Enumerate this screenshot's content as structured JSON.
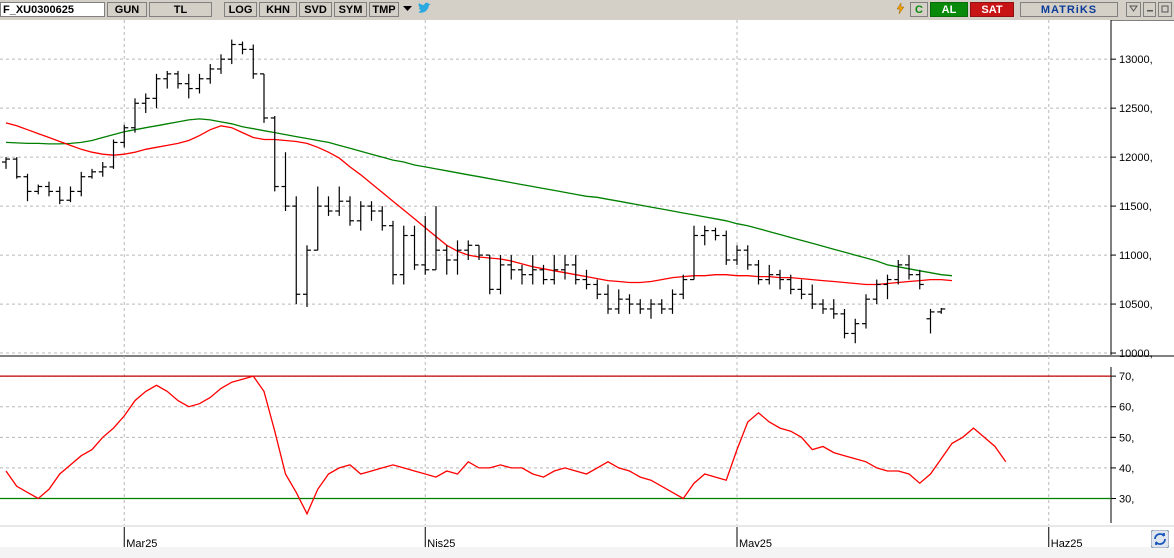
{
  "toolbar": {
    "symbol": "F_XU0300625",
    "period": "GUN",
    "currency": "TL",
    "buttons": [
      "LOG",
      "KHN",
      "SVD",
      "SYM",
      "TMP"
    ],
    "c_label": "C",
    "al_label": "AL",
    "sat_label": "SAT",
    "brand": "MATRiKS",
    "colors": {
      "al": "#0a8a0a",
      "sat": "#c81414",
      "brand": "#0b3c99"
    }
  },
  "icons": [
    "dropdown-arrow-icon",
    "twitter-bird-icon",
    "lightning-icon",
    "minimize-icon",
    "restore-icon",
    "refresh-icon"
  ],
  "chart_data": [
    {
      "type": "ohlc",
      "y_ticks": [
        "13000,",
        "12500,",
        "12000,",
        "11500,",
        "11000,",
        "10500,",
        "10000,"
      ],
      "ylim": [
        9980,
        13400
      ],
      "grid": true,
      "x_labels": [
        {
          "label": "Mar25",
          "index": 11
        },
        {
          "label": "Nis25",
          "index": 39
        },
        {
          "label": "May25",
          "index": 68
        },
        {
          "label": "Haz25",
          "index": 97
        }
      ],
      "bars": [
        [
          11950,
          12000,
          11880,
          11980
        ],
        [
          11980,
          12000,
          11780,
          11800
        ],
        [
          11800,
          11830,
          11550,
          11650
        ],
        [
          11650,
          11720,
          11620,
          11700
        ],
        [
          11700,
          11750,
          11600,
          11650
        ],
        [
          11650,
          11700,
          11520,
          11560
        ],
        [
          11560,
          11700,
          11540,
          11650
        ],
        [
          11650,
          11850,
          11600,
          11800
        ],
        [
          11800,
          11880,
          11780,
          11850
        ],
        [
          11850,
          11950,
          11800,
          11900
        ],
        [
          11900,
          12180,
          11880,
          12150
        ],
        [
          12150,
          12330,
          12100,
          12300
        ],
        [
          12300,
          12600,
          12250,
          12550
        ],
        [
          12550,
          12650,
          12450,
          12600
        ],
        [
          12600,
          12850,
          12500,
          12800
        ],
        [
          12800,
          12880,
          12700,
          12850
        ],
        [
          12850,
          12880,
          12700,
          12750
        ],
        [
          12750,
          12850,
          12600,
          12700
        ],
        [
          12700,
          12850,
          12650,
          12800
        ],
        [
          12800,
          12950,
          12750,
          12900
        ],
        [
          12900,
          13050,
          12850,
          13000
        ],
        [
          13000,
          13200,
          12950,
          13150
        ],
        [
          13150,
          13180,
          13050,
          13100
        ],
        [
          13100,
          13150,
          12800,
          12850
        ],
        [
          12850,
          12850,
          12350,
          12400
        ],
        [
          12400,
          12420,
          11650,
          11700
        ],
        [
          11700,
          12050,
          11450,
          11500
        ],
        [
          11500,
          11600,
          10500,
          10600
        ],
        [
          10600,
          11100,
          10470,
          11050
        ],
        [
          11050,
          11700,
          11050,
          11500
        ],
        [
          11500,
          11600,
          11400,
          11450
        ],
        [
          11450,
          11700,
          11400,
          11550
        ],
        [
          11550,
          11600,
          11300,
          11350
        ],
        [
          11350,
          11550,
          11250,
          11500
        ],
        [
          11500,
          11550,
          11350,
          11450
        ],
        [
          11450,
          11500,
          11250,
          11300
        ],
        [
          11300,
          11350,
          10700,
          10800
        ],
        [
          10800,
          11300,
          10700,
          11200
        ],
        [
          11200,
          11300,
          10850,
          10900
        ],
        [
          10900,
          11400,
          10800,
          10850
        ],
        [
          10850,
          11500,
          10850,
          11050
        ],
        [
          11050,
          11100,
          10800,
          10950
        ],
        [
          10950,
          11150,
          10800,
          11050
        ],
        [
          11050,
          11150,
          10950,
          11100
        ],
        [
          11100,
          11100,
          10950,
          11000
        ],
        [
          11000,
          11000,
          10600,
          10650
        ],
        [
          10650,
          11000,
          10600,
          10900
        ],
        [
          10900,
          11000,
          10750,
          10850
        ],
        [
          10850,
          10900,
          10700,
          10800
        ],
        [
          10800,
          11000,
          10700,
          10850
        ],
        [
          10850,
          10900,
          10700,
          10750
        ],
        [
          10750,
          11000,
          10700,
          10850
        ],
        [
          10850,
          11000,
          10750,
          10900
        ],
        [
          10900,
          11000,
          10700,
          10750
        ],
        [
          10750,
          10850,
          10650,
          10700
        ],
        [
          10700,
          10750,
          10550,
          10600
        ],
        [
          10600,
          10700,
          10400,
          10450
        ],
        [
          10450,
          10650,
          10400,
          10550
        ],
        [
          10550,
          10600,
          10400,
          10500
        ],
        [
          10500,
          10550,
          10400,
          10450
        ],
        [
          10450,
          10550,
          10350,
          10500
        ],
        [
          10500,
          10550,
          10400,
          10450
        ],
        [
          10450,
          10650,
          10400,
          10600
        ],
        [
          10600,
          10800,
          10550,
          10750
        ],
        [
          10750,
          11300,
          10750,
          11200
        ],
        [
          11200,
          11300,
          11100,
          11250
        ],
        [
          11250,
          11280,
          11150,
          11200
        ],
        [
          11200,
          11250,
          10900,
          10950
        ],
        [
          10950,
          11100,
          10900,
          11050
        ],
        [
          11050,
          11100,
          10850,
          10900
        ],
        [
          10900,
          10950,
          10700,
          10750
        ],
        [
          10750,
          10900,
          10700,
          10800
        ],
        [
          10800,
          10850,
          10650,
          10750
        ],
        [
          10750,
          10800,
          10600,
          10650
        ],
        [
          10650,
          10750,
          10550,
          10600
        ],
        [
          10600,
          10700,
          10450,
          10500
        ],
        [
          10500,
          10550,
          10400,
          10450
        ],
        [
          10450,
          10550,
          10350,
          10400
        ],
        [
          10400,
          10450,
          10150,
          10200
        ],
        [
          10200,
          10350,
          10100,
          10300
        ],
        [
          10300,
          10600,
          10250,
          10550
        ],
        [
          10550,
          10750,
          10500,
          10700
        ],
        [
          10700,
          10800,
          10550,
          10750
        ],
        [
          10750,
          10950,
          10700,
          10900
        ],
        [
          10900,
          11000,
          10750,
          10800
        ],
        [
          10800,
          10850,
          10650,
          10700
        ],
        [
          10350,
          10450,
          10200,
          10420
        ],
        [
          10420,
          10460,
          10400,
          10450
        ]
      ],
      "series": [
        {
          "name": "",
          "color": "#008000",
          "values": [
            12150,
            12145,
            12140,
            12140,
            12135,
            12135,
            12140,
            12150,
            12170,
            12200,
            12230,
            12260,
            12280,
            12300,
            12320,
            12340,
            12360,
            12380,
            12390,
            12380,
            12360,
            12340,
            12310,
            12290,
            12270,
            12250,
            12230,
            12210,
            12190,
            12170,
            12150,
            12120,
            12090,
            12060,
            12030,
            12000,
            11970,
            11950,
            11920,
            11900,
            11880,
            11860,
            11840,
            11820,
            11800,
            11780,
            11760,
            11740,
            11720,
            11700,
            11680,
            11660,
            11640,
            11620,
            11600,
            11590,
            11570,
            11550,
            11530,
            11510,
            11490,
            11470,
            11450,
            11430,
            11410,
            11390,
            11370,
            11350,
            11320,
            11300,
            11270,
            11240,
            11210,
            11180,
            11150,
            11120,
            11090,
            11060,
            11030,
            11000,
            10970,
            10940,
            10900,
            10880,
            10860,
            10840,
            10820,
            10800,
            10790
          ]
        },
        {
          "name": "",
          "color": "#ff0000",
          "values": [
            12350,
            12320,
            12280,
            12240,
            12200,
            12160,
            12120,
            12080,
            12050,
            12030,
            12020,
            12030,
            12050,
            12080,
            12100,
            12120,
            12140,
            12170,
            12220,
            12280,
            12320,
            12300,
            12250,
            12200,
            12180,
            12180,
            12170,
            12160,
            12140,
            12100,
            12050,
            11990,
            11900,
            11820,
            11730,
            11640,
            11550,
            11460,
            11370,
            11280,
            11190,
            11100,
            11040,
            11000,
            10980,
            10970,
            10960,
            10940,
            10910,
            10880,
            10860,
            10840,
            10820,
            10800,
            10780,
            10760,
            10740,
            10730,
            10720,
            10720,
            10730,
            10750,
            10770,
            10780,
            10790,
            10790,
            10800,
            10800,
            10790,
            10790,
            10780,
            10780,
            10770,
            10770,
            10760,
            10750,
            10740,
            10730,
            10720,
            10710,
            10700,
            10700,
            10710,
            10720,
            10730,
            10740,
            10750,
            10750,
            10740
          ]
        }
      ]
    },
    {
      "type": "line",
      "y_ticks": [
        "70,",
        "60,",
        "50,",
        "40,",
        "30,"
      ],
      "ylim": [
        22,
        72
      ],
      "levels": [
        {
          "value": 70,
          "color": "#c00000"
        },
        {
          "value": 30,
          "color": "#008000"
        }
      ],
      "series": [
        {
          "name": "",
          "color": "#ff0000",
          "values": [
            39,
            34,
            32,
            30,
            33,
            38,
            41,
            44,
            46,
            50,
            53,
            57,
            62,
            65,
            67,
            65,
            62,
            60,
            61,
            63,
            66,
            68,
            69,
            70,
            65,
            52,
            38,
            32,
            25,
            33,
            38,
            40,
            41,
            38,
            39,
            40,
            41,
            40,
            39,
            38,
            37,
            39,
            38,
            42,
            40,
            40,
            41,
            40,
            40,
            38,
            37,
            39,
            40,
            39,
            38,
            40,
            42,
            40,
            39,
            37,
            36,
            34,
            32,
            30,
            35,
            38,
            37,
            36,
            46,
            55,
            58,
            55,
            53,
            52,
            50,
            46,
            47,
            45,
            44,
            43,
            42,
            40,
            39,
            39,
            38,
            35,
            38,
            43,
            48,
            50,
            53,
            50,
            47,
            42
          ]
        }
      ]
    }
  ]
}
